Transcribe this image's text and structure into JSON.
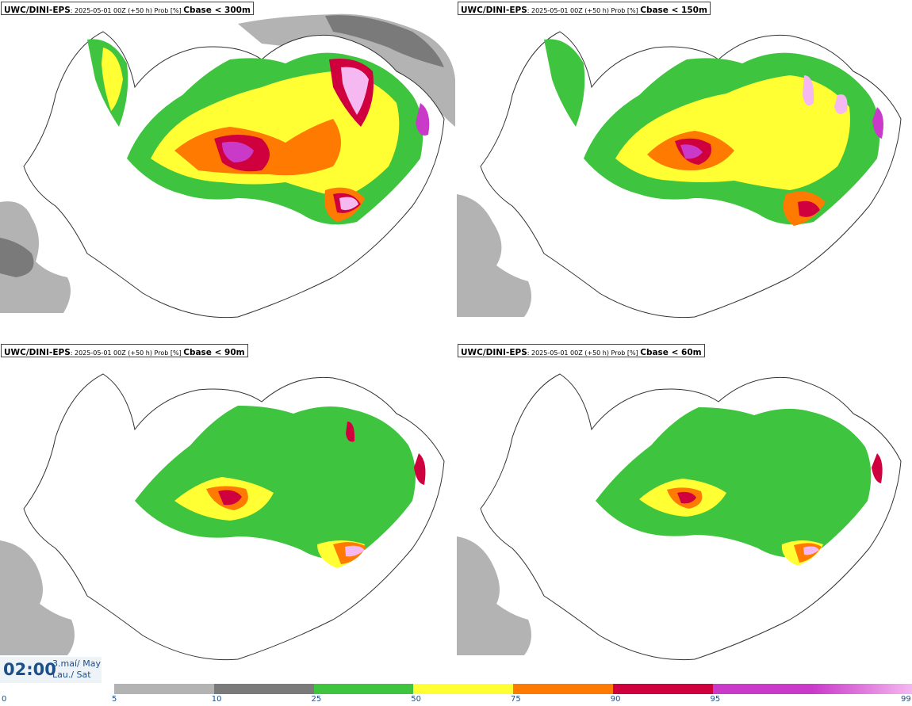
{
  "panels": [
    {
      "model": "UWC/DINI-EPS",
      "info": ": 2025-05-01 00Z (+50 h) Prob [%] ",
      "param": "Cbase < 300m"
    },
    {
      "model": "UWC/DINI-EPS",
      "info": ": 2025-05-01 00Z (+50 h) Prob [%] ",
      "param": "Cbase < 150m"
    },
    {
      "model": "UWC/DINI-EPS",
      "info": ": 2025-05-01 00Z (+50 h) Prob [%] ",
      "param": "Cbase < 90m"
    },
    {
      "model": "UWC/DINI-EPS",
      "info": ": 2025-05-01 00Z (+50 h) Prob [%] ",
      "param": "Cbase < 60m"
    }
  ],
  "valid_time": {
    "time": "02:00",
    "date_line1": "3.maí/ May",
    "date_line2": "Lau./ Sat"
  },
  "colorbar": {
    "ticks": [
      "0",
      "5",
      "10",
      "25",
      "50",
      "75",
      "90",
      "95",
      "99"
    ],
    "colors": [
      "#ffffff",
      "#b3b3b3",
      "#7a7a7a",
      "#3ec43e",
      "#ffff33",
      "#ff7a00",
      "#d0003f",
      "#c93ac9",
      "#f5b8f0"
    ]
  }
}
